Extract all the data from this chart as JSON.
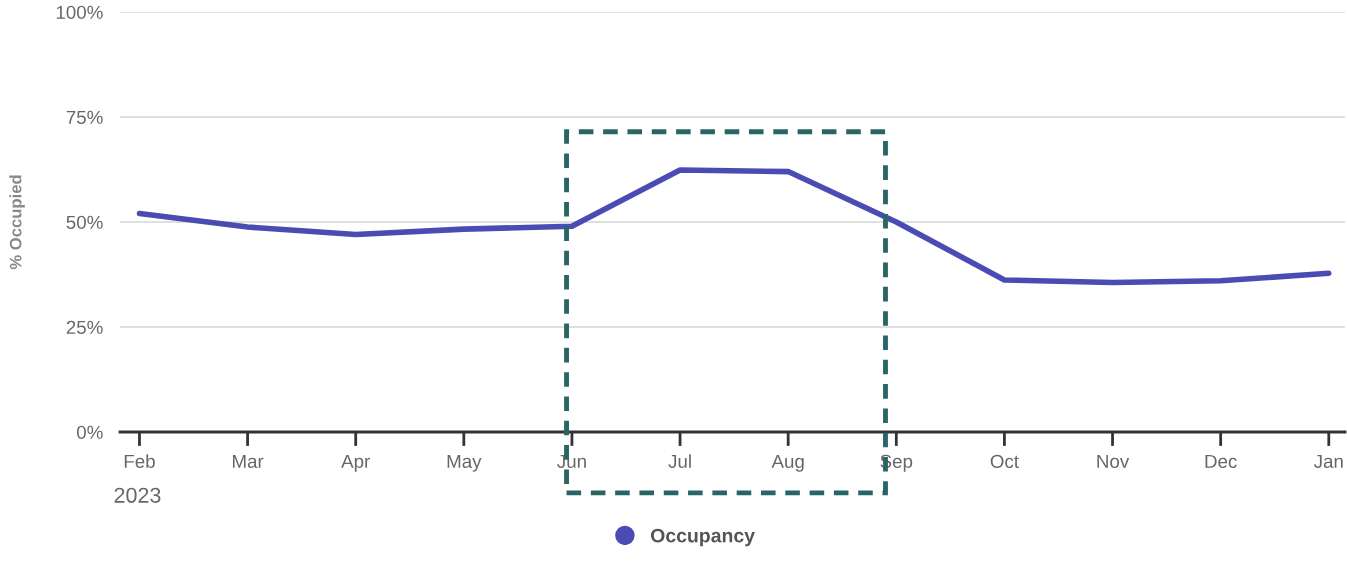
{
  "chart_data": {
    "type": "line",
    "ylabel": "% Occupied",
    "categories": [
      "Feb",
      "Mar",
      "Apr",
      "May",
      "Jun",
      "Jul",
      "Aug",
      "Sep",
      "Oct",
      "Nov",
      "Dec",
      "Jan"
    ],
    "series": [
      {
        "name": "Occupancy",
        "color": "#4b4bb4",
        "values": [
          52,
          48.8,
          47,
          48.3,
          49,
          62.4,
          62,
          50,
          36.2,
          35.6,
          36,
          37.8
        ]
      }
    ],
    "ylim": [
      0,
      100
    ],
    "yticks": [
      {
        "value": 0,
        "label": "0%"
      },
      {
        "value": 25,
        "label": "25%"
      },
      {
        "value": 50,
        "label": "50%"
      },
      {
        "value": 75,
        "label": "75%"
      },
      {
        "value": 100,
        "label": "100%"
      }
    ],
    "grid": "y",
    "legend": "bottom",
    "marker": "none",
    "line_style": "solid",
    "annotations": [
      "2023"
    ]
  }
}
